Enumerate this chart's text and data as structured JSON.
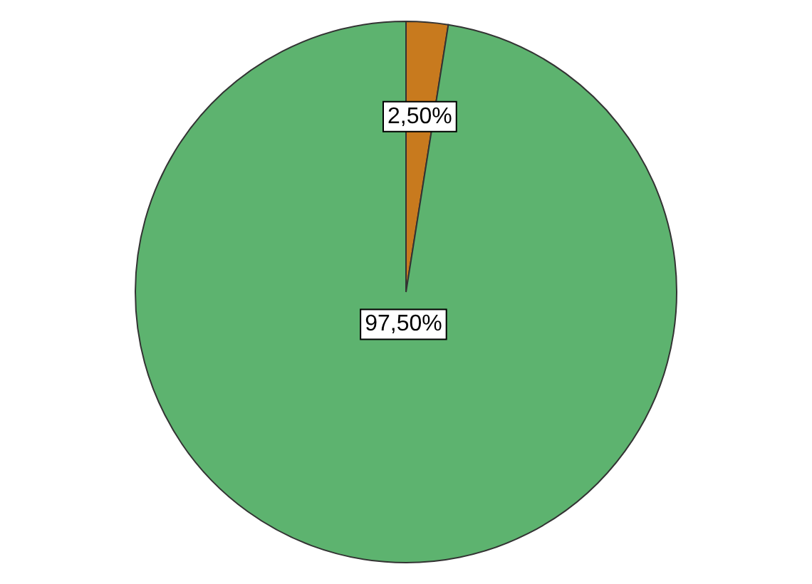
{
  "chart_data": {
    "type": "pie",
    "categories": [
      null,
      null
    ],
    "values": [
      2.5,
      97.5
    ],
    "colors": [
      "#c87a1e",
      "#5db36f"
    ],
    "value_labels": [
      "2,50%",
      "97,50%"
    ]
  }
}
